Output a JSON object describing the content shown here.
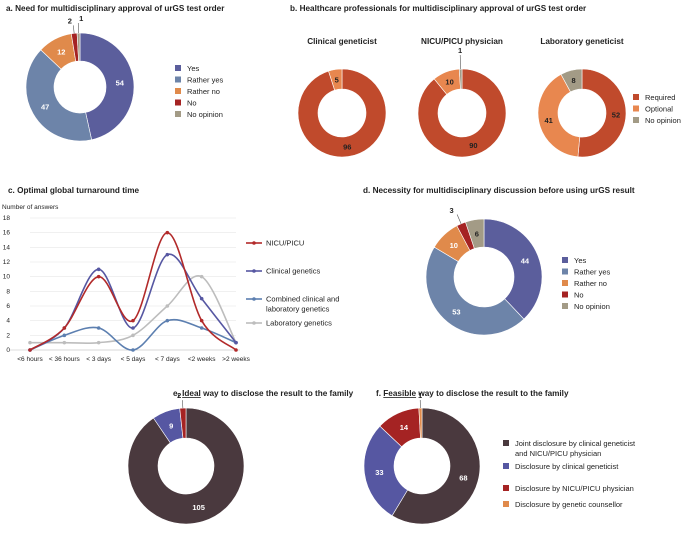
{
  "colors": {
    "yes": "#5B5E9C",
    "rather_yes": "#6D84A9",
    "rather_no": "#E08A4B",
    "no": "#A52323",
    "no_opinion": "#A39B86",
    "required": "#C04A2C",
    "optional": "#E8874F",
    "nicu_line": "#B22A2A",
    "clin_line": "#5657A2",
    "combined_line": "#5C7FB0",
    "lab_line": "#BDBDBD",
    "joint": "#4A393E",
    "clin_genet": "#5657A2",
    "nicu_disc": "#A52323",
    "gen_counsellor": "#E08A4B"
  },
  "chart_data": [
    {
      "id": "a",
      "type": "pie",
      "title_prefix": "a.",
      "title": "Need for multidisciplinary approval of urGS test order",
      "categories": [
        "Yes",
        "Rather yes",
        "Rather no",
        "No",
        "No opinion"
      ],
      "values": [
        54,
        47,
        12,
        2,
        1
      ],
      "legend": [
        "Yes",
        "Rather yes",
        "Rather no",
        "No",
        "No opinion"
      ]
    },
    {
      "id": "b",
      "type": "pie",
      "title_prefix": "b.",
      "title": "Healthcare professionals for multidisciplinary approval of urGS test order",
      "subcharts": [
        {
          "title": "Clinical geneticist",
          "categories": [
            "Required",
            "Optional",
            "No opinion"
          ],
          "values": [
            96,
            5,
            0
          ]
        },
        {
          "title": "NICU/PICU physician",
          "categories": [
            "Required",
            "Optional",
            "No opinion"
          ],
          "values": [
            90,
            10,
            1
          ]
        },
        {
          "title": "Laboratory geneticist",
          "categories": [
            "Required",
            "Optional",
            "No opinion"
          ],
          "values": [
            52,
            41,
            8
          ]
        }
      ],
      "legend": [
        "Required",
        "Optional",
        "No opinion"
      ]
    },
    {
      "id": "c",
      "type": "line",
      "title_prefix": "c.",
      "title": "Optimal global turnaround time",
      "ylabel": "Number of answers",
      "ylim": [
        0,
        18
      ],
      "yticks": [
        "0",
        "2",
        "4",
        "6",
        "8",
        "10",
        "12",
        "14",
        "16",
        "18"
      ],
      "categories": [
        "<6 hours",
        "< 36 hours",
        "< 3 days",
        "< 5 days",
        "< 7 days",
        "<2 weeks",
        ">2 weeks"
      ],
      "series": [
        {
          "name": "NICU/PICU",
          "values": [
            0,
            3,
            10,
            4,
            16,
            4,
            0
          ]
        },
        {
          "name": "Clinical genetics",
          "values": [
            0,
            3,
            11,
            3,
            13,
            7,
            1
          ]
        },
        {
          "name": "Combined clinical and laboratory genetics",
          "values": [
            0,
            2,
            3,
            0,
            4,
            3,
            1
          ]
        },
        {
          "name": "Laboratory genetics",
          "values": [
            1,
            1,
            1,
            2,
            6,
            10,
            1
          ]
        }
      ],
      "legend_lines": [
        [
          "NICU/PICU"
        ],
        [
          "Clinical genetics"
        ],
        [
          "Combined clinical and",
          "laboratory genetics"
        ],
        [
          "Laboratory genetics"
        ]
      ]
    },
    {
      "id": "d",
      "type": "pie",
      "title_prefix": "d.",
      "title": "Necessity for multidisciplinary discussion before using urGS result",
      "categories": [
        "Yes",
        "Rather yes",
        "Rather no",
        "No",
        "No opinion"
      ],
      "values": [
        44,
        53,
        10,
        3,
        6
      ],
      "legend": [
        "Yes",
        "Rather yes",
        "Rather no",
        "No",
        "No opinion"
      ]
    },
    {
      "id": "e",
      "type": "pie",
      "title_prefix": "e.",
      "title_emph": "Ideal",
      "title": "way to disclose the result to the family",
      "categories": [
        "Joint disclosure by clinical geneticist and NICU/PICU physician",
        "Disclosure by clinical geneticist",
        "Disclosure by NICU/PICU physician"
      ],
      "values": [
        105,
        9,
        2
      ]
    },
    {
      "id": "f",
      "type": "pie",
      "title_prefix": "f.",
      "title_emph": "Feasible",
      "title": "way to disclose the result to the family",
      "categories": [
        "Joint disclosure by clinical geneticist and NICU/PICU physician",
        "Disclosure by clinical geneticist",
        "Disclosure by NICU/PICU physician",
        "Disclosure by genetic counsellor"
      ],
      "values": [
        68,
        33,
        14,
        1
      ],
      "legend_lines": [
        [
          "Joint disclosure by clinical geneticist",
          "and NICU/PICU physician"
        ],
        [
          "Disclosure by clinical geneticist"
        ],
        [
          "Disclosure by NICU/PICU physician"
        ],
        [
          "Disclosure by genetic counsellor"
        ]
      ]
    }
  ]
}
